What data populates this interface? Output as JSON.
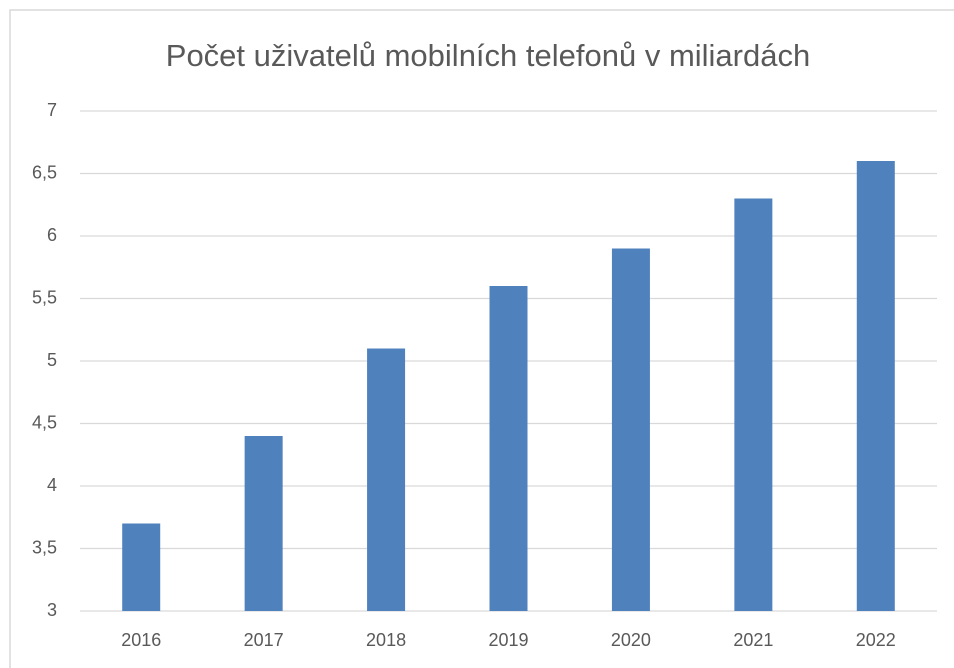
{
  "chart_data": {
    "type": "bar",
    "title": "Počet uživatelů mobilních telefonů v miliardách",
    "categories": [
      "2016",
      "2017",
      "2018",
      "2019",
      "2020",
      "2021",
      "2022"
    ],
    "values": [
      3.7,
      4.4,
      5.1,
      5.6,
      5.9,
      6.3,
      6.6
    ],
    "color": "#4f81bd",
    "ylim": [
      3,
      7
    ],
    "yticks": [
      3,
      {
        "value": 3.5,
        "label": "3,5"
      },
      4,
      {
        "value": 4.5,
        "label": "4,5"
      },
      5,
      {
        "value": 5.5,
        "label": "5,5"
      },
      6,
      {
        "value": 6.5,
        "label": "6,5"
      },
      7
    ],
    "grid": true
  }
}
